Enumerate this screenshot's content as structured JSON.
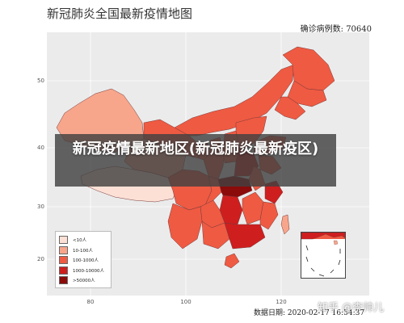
{
  "title": "新冠肺炎全国最新疫情地图",
  "case_count_label": "确诊病例数: 70640",
  "data_date_label": "数据日期: 2020-02-17 16:54:37",
  "banner_text": "新冠疫情最新地区(新冠肺炎最新疫区)",
  "watermark": "知乎 @李帅儿",
  "axes": {
    "y_ticks": [
      "50",
      "40",
      "30",
      "20"
    ],
    "x_ticks": [
      "80",
      "100",
      "120"
    ]
  },
  "legend": {
    "items": [
      {
        "label": "<10人",
        "color": "#fde0d5"
      },
      {
        "label": "10-100人",
        "color": "#f7a68c"
      },
      {
        "label": "100-1000人",
        "color": "#ef5a42"
      },
      {
        "label": "1000-10000人",
        "color": "#cf1e1e"
      },
      {
        "label": ">50000人",
        "color": "#8b0a0a"
      }
    ]
  },
  "colors": {
    "panel_background": "#ebebeb",
    "grid": "#ffffff",
    "province_border": "#7a3a3a"
  }
}
